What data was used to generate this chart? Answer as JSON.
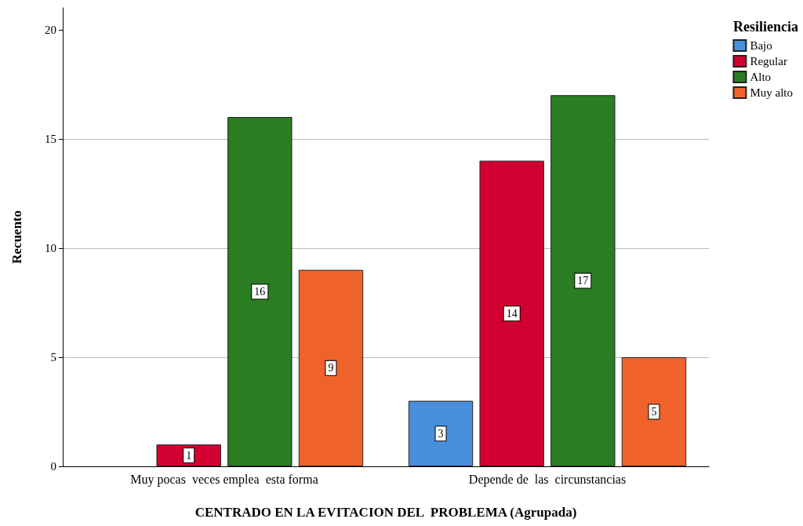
{
  "chart_data": {
    "type": "bar",
    "xlabel": "CENTRADO EN LA EVITACION DEL  PROBLEMA (Agrupada)",
    "ylabel": "Recuento",
    "legend_title": "Resiliencia",
    "categories": [
      "Muy pocas  veces emplea  esta forma",
      "Depende de  las  circunstancias"
    ],
    "series": [
      {
        "name": "Bajo",
        "color": "#4a8fdd",
        "values": [
          null,
          3
        ]
      },
      {
        "name": "Regular",
        "color": "#d20030",
        "values": [
          1,
          14
        ]
      },
      {
        "name": "Alto",
        "color": "#2a7d22",
        "values": [
          16,
          17
        ]
      },
      {
        "name": "Muy alto",
        "color": "#ef632b",
        "values": [
          9,
          5
        ]
      }
    ],
    "ylim": [
      0,
      21
    ],
    "yticks": [
      0,
      5,
      10,
      15,
      20
    ],
    "grid": "y",
    "legend": "top right",
    "data_labels": true
  }
}
